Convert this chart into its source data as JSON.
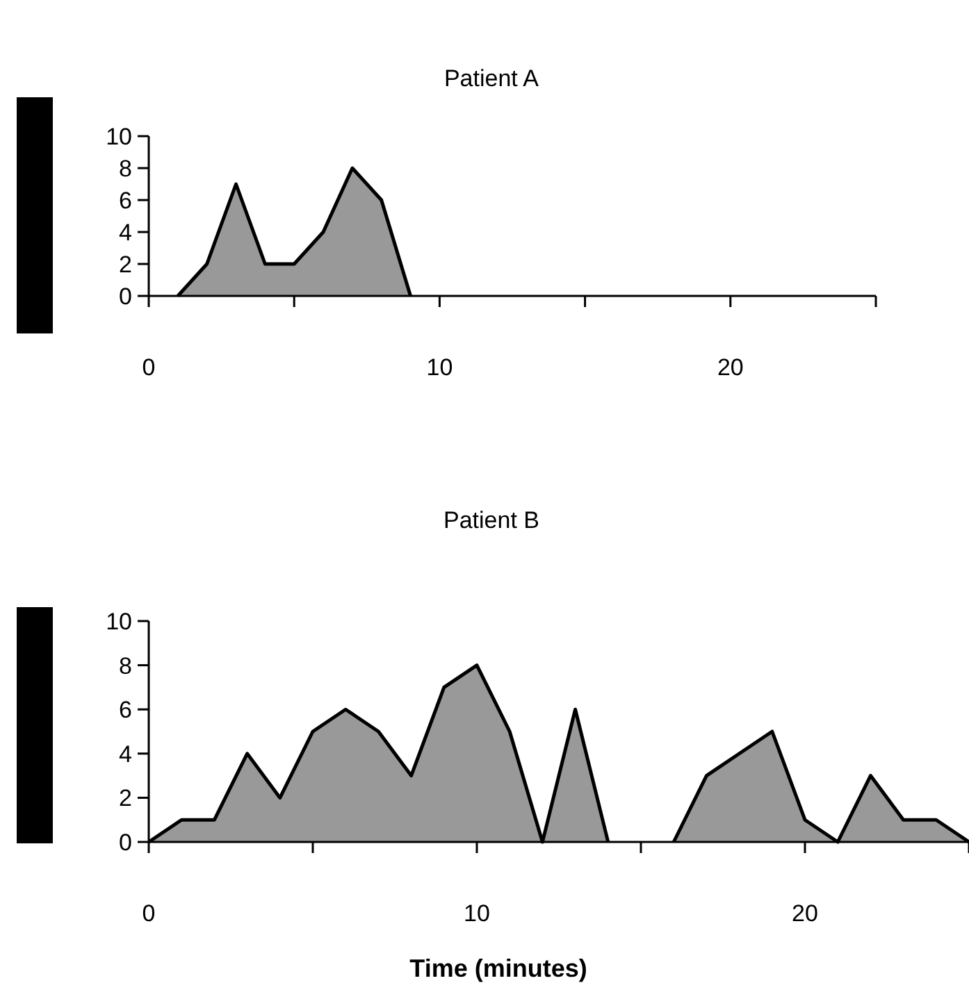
{
  "chart_data": [
    {
      "type": "area",
      "title": "Patient A",
      "x": [
        1,
        2,
        3,
        4,
        5,
        6,
        7,
        8,
        9
      ],
      "series": [
        {
          "color": "#999999",
          "values": [
            0,
            2,
            7,
            2,
            2,
            4,
            8,
            6,
            0
          ]
        }
      ],
      "xlim": [
        0,
        25
      ],
      "xticks": [
        0,
        {
          "value": 5,
          "label": null
        },
        10,
        {
          "value": 15,
          "label": null
        },
        20,
        {
          "value": 25,
          "label": null
        }
      ],
      "ylim": [
        0,
        10
      ],
      "yticks": [
        0,
        2,
        4,
        6,
        8,
        10
      ]
    },
    {
      "type": "area",
      "title": "Patient B",
      "xlabel": "Time (minutes)",
      "x": [
        0,
        1,
        2,
        3,
        4,
        5,
        6,
        7,
        8,
        9,
        10,
        11,
        12,
        13,
        14,
        15,
        16,
        17,
        18,
        19,
        20,
        21,
        22,
        23,
        24,
        25
      ],
      "series": [
        {
          "color": "#999999",
          "values": [
            0,
            1,
            1,
            4,
            2,
            5,
            6,
            5,
            3,
            7,
            8,
            5,
            0,
            6,
            0,
            null,
            0,
            3,
            4,
            5,
            1,
            0,
            3,
            1,
            1,
            0
          ]
        }
      ],
      "xlim": [
        0,
        25
      ],
      "xticks": [
        0,
        {
          "value": 5,
          "label": null
        },
        10,
        {
          "value": 15,
          "label": null
        },
        20,
        {
          "value": 25,
          "label": null
        }
      ],
      "ylim": [
        0,
        10
      ],
      "yticks": [
        0,
        2,
        4,
        6,
        8,
        10
      ]
    }
  ]
}
